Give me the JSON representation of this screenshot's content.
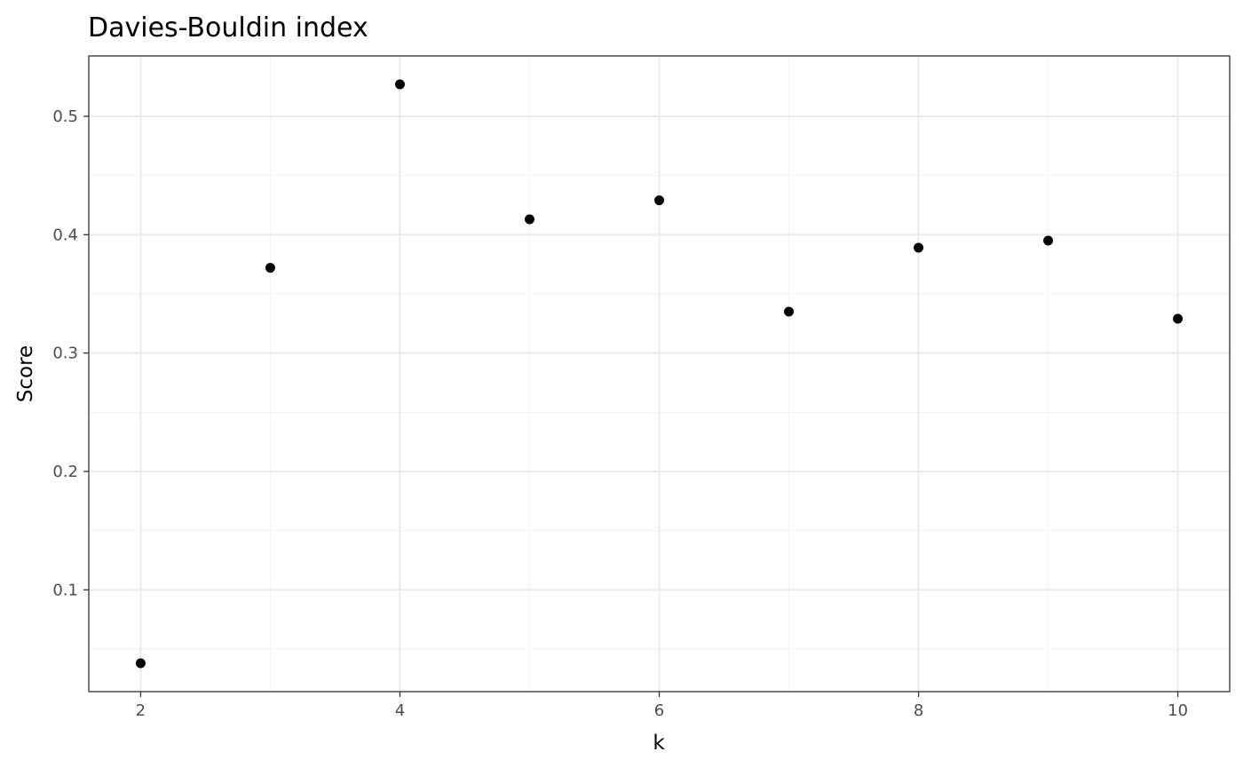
{
  "chart_data": {
    "type": "scatter",
    "title": "Davies-Bouldin index",
    "xlabel": "k",
    "ylabel": "Score",
    "xlim": [
      1.6,
      10.4
    ],
    "ylim": [
      0.014,
      0.551
    ],
    "x_ticks": [
      2,
      4,
      6,
      8,
      10
    ],
    "x_tick_labels": [
      "2",
      "4",
      "6",
      "8",
      "10"
    ],
    "y_ticks": [
      0.1,
      0.2,
      0.3,
      0.4,
      0.5
    ],
    "y_tick_labels": [
      "0.1",
      "0.2",
      "0.3",
      "0.4",
      "0.5"
    ],
    "x_minor_ticks": [
      3,
      5,
      7,
      9
    ],
    "y_minor_ticks": [
      0.05,
      0.15,
      0.25,
      0.35,
      0.45
    ],
    "grid": true,
    "points": [
      {
        "x": 2,
        "y": 0.038
      },
      {
        "x": 3,
        "y": 0.372
      },
      {
        "x": 4,
        "y": 0.527
      },
      {
        "x": 5,
        "y": 0.413
      },
      {
        "x": 6,
        "y": 0.429
      },
      {
        "x": 7,
        "y": 0.335
      },
      {
        "x": 8,
        "y": 0.389
      },
      {
        "x": 9,
        "y": 0.395
      },
      {
        "x": 10,
        "y": 0.329
      }
    ],
    "colors": {
      "point": "#000000",
      "panel_border": "#333333",
      "grid_major": "#ebebeb",
      "grid_minor": "#f3f3f3",
      "tick_label": "#4d4d4d",
      "background": "#ffffff"
    }
  }
}
